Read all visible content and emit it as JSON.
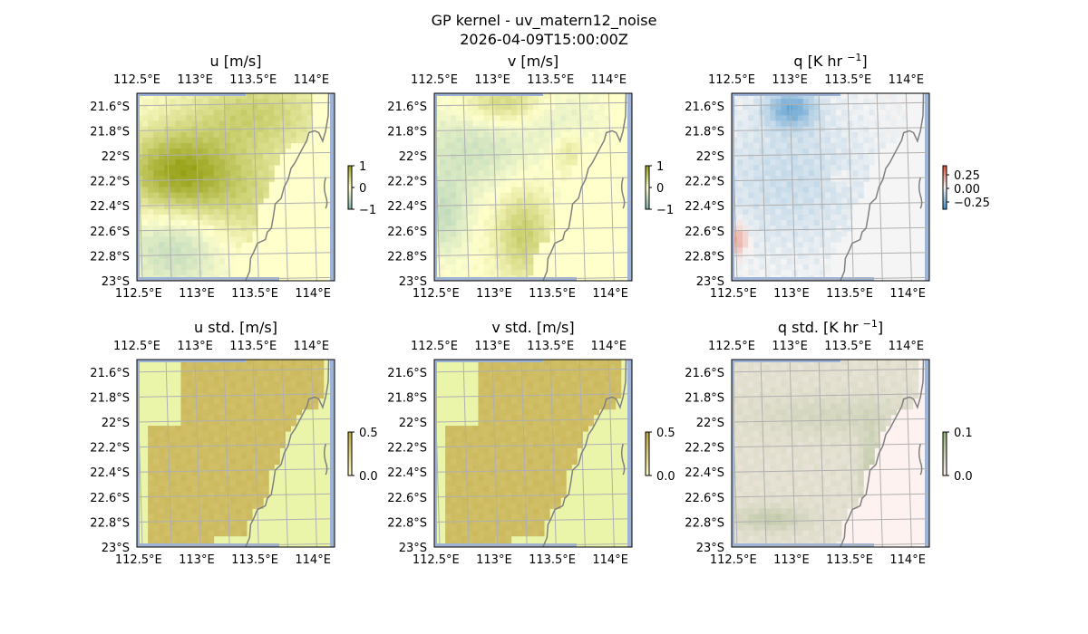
{
  "figure": {
    "title_line1": "GP kernel - uv_matern12_noise",
    "title_line2": "2026-04-09T15:00:00Z"
  },
  "chart_data": {
    "type": "heatmap",
    "map_extent": {
      "lon": [
        112.5,
        114.2
      ],
      "lat": [
        -23.0,
        -21.5
      ]
    },
    "lon_ticks": [
      "112.5°E",
      "113°E",
      "113.5°E",
      "114°E"
    ],
    "lon_tick_values": [
      112.5,
      113.0,
      113.5,
      114.0
    ],
    "lat_ticks": [
      "21.6°S",
      "21.8°S",
      "22°S",
      "22.2°S",
      "22.4°S",
      "22.6°S",
      "22.8°S",
      "23°S"
    ],
    "lat_tick_values": [
      -21.6,
      -21.8,
      -22.0,
      -22.2,
      -22.4,
      -22.6,
      -22.8,
      -23.0
    ],
    "grid": true,
    "panels": [
      {
        "id": "u",
        "title": "u [m/s]",
        "field": "u",
        "colormap": "yellow-green-teal",
        "colorbar_ticks": [
          "1",
          "0",
          "−1"
        ],
        "colorbar_range": [
          -1,
          1
        ]
      },
      {
        "id": "v",
        "title": "v [m/s]",
        "field": "v",
        "colormap": "yellow-green-teal",
        "colorbar_ticks": [
          "1",
          "0",
          "−1"
        ],
        "colorbar_range": [
          -1,
          1
        ]
      },
      {
        "id": "q",
        "title_base": "q [K hr ",
        "title_sup": "−1",
        "title_end": "]",
        "field": "q",
        "colormap": "red-white-blue",
        "colorbar_ticks": [
          "0.25",
          "0.00",
          "−0.25"
        ],
        "colorbar_range": [
          -0.35,
          0.35
        ]
      },
      {
        "id": "u_std",
        "title": "u std. [m/s]",
        "field": "u_std",
        "colormap": "yellow-olive",
        "colorbar_ticks": [
          "0.5",
          "0.0"
        ],
        "colorbar_range": [
          0,
          0.5
        ]
      },
      {
        "id": "v_std",
        "title": "v std. [m/s]",
        "field": "v_std",
        "colormap": "yellow-olive",
        "colorbar_ticks": [
          "0.5",
          "0.0"
        ],
        "colorbar_range": [
          0,
          0.5
        ]
      },
      {
        "id": "q_std",
        "title_base": "q std. [K hr ",
        "title_sup": "−1",
        "title_end": "]",
        "field": "q_std",
        "colormap": "pink-green",
        "colorbar_ticks": [
          "0.1",
          "0.0"
        ],
        "colorbar_range": [
          0,
          0.1
        ]
      }
    ],
    "colors": {
      "ocean": "#9db4d8",
      "coast": "#808080",
      "grid": "#b0b0b0",
      "land_uv": "#ffffcc",
      "land_q": "#f5f5f5",
      "land_std": "#eaf5aa",
      "land_qstd": "#fdf2ef"
    }
  }
}
